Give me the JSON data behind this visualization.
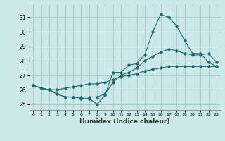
{
  "xlabel": "Humidex (Indice chaleur)",
  "background_color": "#cce8e8",
  "grid_color": "#aacccc",
  "line_color": "#1a6b6b",
  "xlim": [
    -0.5,
    23.5
  ],
  "ylim": [
    24.6,
    31.9
  ],
  "yticks": [
    25,
    26,
    27,
    28,
    29,
    30,
    31
  ],
  "xticks": [
    0,
    1,
    2,
    3,
    4,
    5,
    6,
    7,
    8,
    9,
    10,
    11,
    12,
    13,
    14,
    15,
    16,
    17,
    18,
    19,
    20,
    21,
    22,
    23
  ],
  "series": [
    [
      26.3,
      26.1,
      26.0,
      25.7,
      25.5,
      25.5,
      25.4,
      25.4,
      25.0,
      25.6,
      27.2,
      27.2,
      27.7,
      27.8,
      28.4,
      30.0,
      31.2,
      31.0,
      30.4,
      29.4,
      28.5,
      28.5,
      27.9,
      27.6
    ],
    [
      26.3,
      26.1,
      26.0,
      25.7,
      25.5,
      25.5,
      25.5,
      25.5,
      25.5,
      25.7,
      26.5,
      27.0,
      27.2,
      27.5,
      28.0,
      28.3,
      28.6,
      28.8,
      28.7,
      28.5,
      28.4,
      28.4,
      28.5,
      27.9
    ],
    [
      26.3,
      26.1,
      26.0,
      26.0,
      26.1,
      26.2,
      26.3,
      26.4,
      26.4,
      26.5,
      26.7,
      26.9,
      27.0,
      27.1,
      27.3,
      27.4,
      27.5,
      27.6,
      27.6,
      27.6,
      27.6,
      27.6,
      27.6,
      27.6
    ]
  ]
}
